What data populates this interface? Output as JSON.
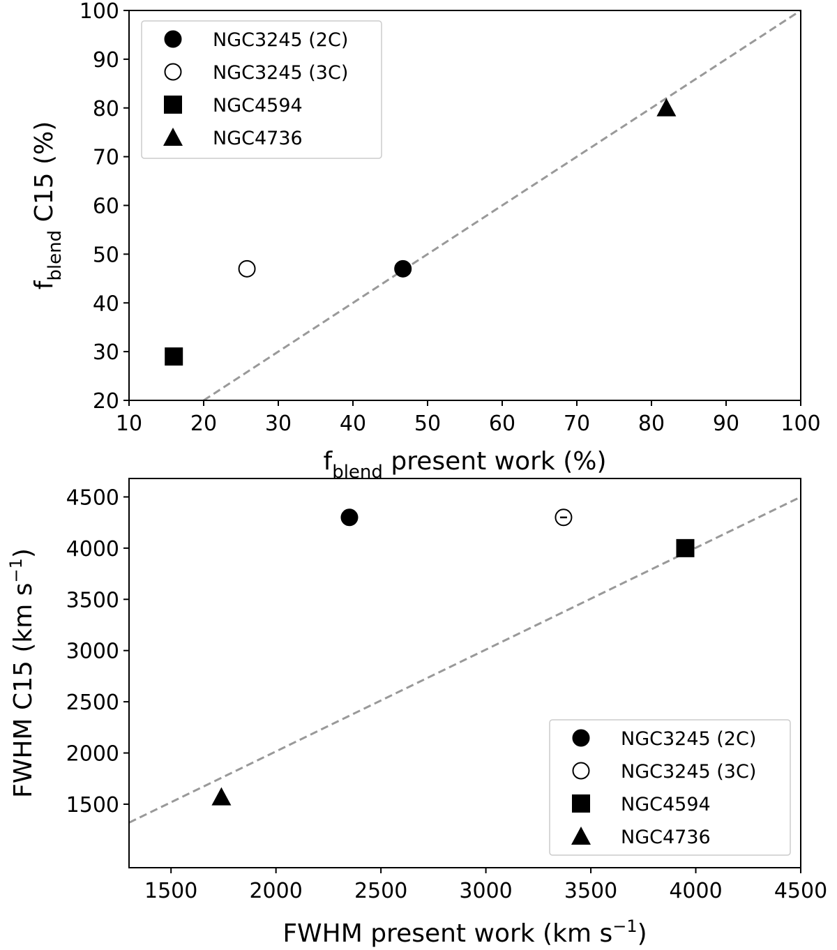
{
  "chart_data": [
    {
      "type": "scatter",
      "title": "",
      "xlabel": {
        "main": "f",
        "sub": "blend",
        "rest": " present work (%)"
      },
      "ylabel": {
        "main": "f",
        "sub": "blend",
        "rest": " C15 (%)"
      },
      "xlim": [
        10,
        100
      ],
      "ylim": [
        20,
        100
      ],
      "xticks": [
        10,
        20,
        30,
        40,
        50,
        60,
        70,
        80,
        90,
        100
      ],
      "yticks": [
        20,
        30,
        40,
        50,
        60,
        70,
        80,
        90,
        100
      ],
      "grid": false,
      "legend_position": "upper-left",
      "reference_line": {
        "style": "dashed",
        "color": "#999999",
        "from": [
          20,
          20
        ],
        "to": [
          100,
          100
        ]
      },
      "series": [
        {
          "name": "NGC3245 (2C)",
          "marker": "circle-filled",
          "x": [
            46.7
          ],
          "y": [
            47
          ]
        },
        {
          "name": "NGC3245 (3C)",
          "marker": "circle-open",
          "x": [
            25.8
          ],
          "y": [
            47
          ]
        },
        {
          "name": "NGC4594",
          "marker": "square-filled",
          "x": [
            16.0
          ],
          "y": [
            29
          ]
        },
        {
          "name": "NGC4736",
          "marker": "triangle-filled",
          "x": [
            82.0
          ],
          "y": [
            80
          ]
        }
      ]
    },
    {
      "type": "scatter",
      "title": "",
      "xlabel": {
        "main": "FWHM present work (km s",
        "sup": "−1",
        "rest": ")"
      },
      "ylabel": {
        "main": "FWHM C15 (km s",
        "sup": "−1",
        "rest": ")"
      },
      "xlim": [
        1300,
        4500
      ],
      "ylim": [
        880,
        4680
      ],
      "xticks": [
        1500,
        2000,
        2500,
        3000,
        3500,
        4000,
        4500
      ],
      "yticks": [
        1500,
        2000,
        2500,
        3000,
        3500,
        4000,
        4500
      ],
      "grid": false,
      "legend_position": "lower-right",
      "reference_line": {
        "style": "dashed",
        "color": "#999999",
        "from": [
          1300,
          1320
        ],
        "to": [
          4500,
          4500
        ]
      },
      "series": [
        {
          "name": "NGC3245 (2C)",
          "marker": "circle-filled",
          "x": [
            2350
          ],
          "y": [
            4300
          ]
        },
        {
          "name": "NGC3245 (3C)",
          "marker": "circle-open-errorbar",
          "x": [
            3370
          ],
          "y": [
            4300
          ]
        },
        {
          "name": "NGC4594",
          "marker": "square-filled",
          "x": [
            3950
          ],
          "y": [
            4000
          ]
        },
        {
          "name": "NGC4736",
          "marker": "triangle-filled",
          "x": [
            1740
          ],
          "y": [
            1570
          ]
        }
      ]
    }
  ]
}
